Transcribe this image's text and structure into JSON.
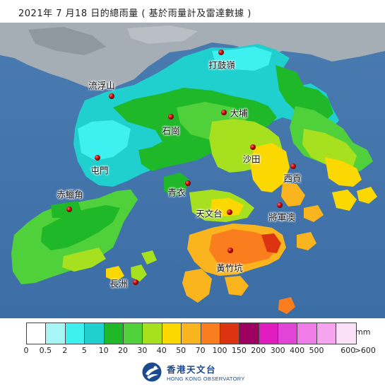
{
  "header": {
    "title": "2021年 7  月18 日的總雨量 ( 基於雨量計及雷達數據 )"
  },
  "stations": [
    {
      "name": "打鼓嶺"
    },
    {
      "name": "流浮山"
    },
    {
      "name": "大埔"
    },
    {
      "name": "石崗"
    },
    {
      "name": "沙田"
    },
    {
      "name": "屯門"
    },
    {
      "name": "西貢"
    },
    {
      "name": "青衣"
    },
    {
      "name": "赤鱲角"
    },
    {
      "name": "天文台"
    },
    {
      "name": "將軍澳"
    },
    {
      "name": "黃竹坑"
    },
    {
      "name": "長洲"
    }
  ],
  "legend": {
    "unit": "mm",
    "colors": [
      "#ffffff",
      "#a8f5f5",
      "#3ef0ef",
      "#1fd0cf",
      "#1eb828",
      "#50d03a",
      "#a6e01e",
      "#fcd802",
      "#fab51e",
      "#fb7e1e",
      "#dc3410",
      "#9c0060",
      "#e01bbf",
      "#e344d8",
      "#f07ce8",
      "#f7a4ef",
      "#fbe0f8"
    ],
    "ticks": [
      "0",
      "0.5",
      "2",
      "5",
      "10",
      "20",
      "30",
      "40",
      "50",
      "70",
      "100",
      "150",
      "200",
      "300",
      "400",
      "500",
      "600",
      ">600"
    ]
  },
  "logo": {
    "name_cn": "香港天文台",
    "name_en": "HONG KONG OBSERVATORY",
    "icon": "hko-emblem-icon"
  }
}
